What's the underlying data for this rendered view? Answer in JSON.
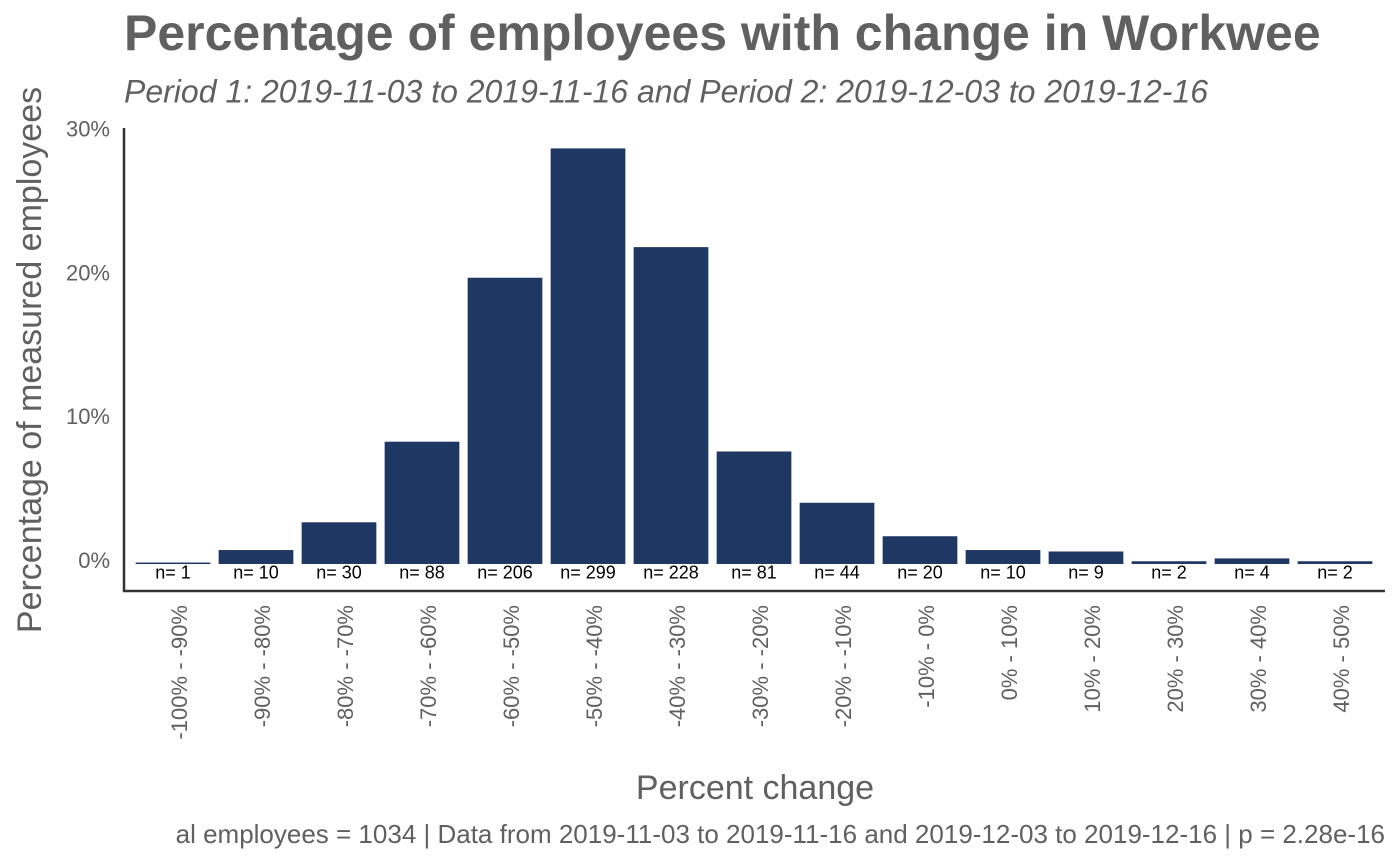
{
  "chart_data": {
    "type": "bar",
    "title": "Percentage of employees with change in Workwee",
    "subtitle": "Period 1: 2019-11-03 to 2019-11-16 and Period 2: 2019-12-03 to 2019-12-16",
    "x_label": "Percent change",
    "y_label": "Percentage of measured employees",
    "caption": "al employees = 1034 | Data from 2019-11-03 to 2019-11-16 and 2019-12-03 to 2019-12-16 | p = 2.28e-16",
    "categories": [
      "-100% - -90%",
      "-90% - -80%",
      "-80% - -70%",
      "-70% - -60%",
      "-60% - -50%",
      "-50% - -40%",
      "-40% - -30%",
      "-30% - -20%",
      "-20% - -10%",
      "-10% - 0%",
      "0% - 10%",
      "10% - 20%",
      "20% - 30%",
      "30% - 40%",
      "40% - 50%"
    ],
    "values": [
      0.1,
      0.97,
      2.9,
      8.51,
      19.92,
      28.92,
      22.05,
      7.83,
      4.26,
      1.93,
      0.97,
      0.87,
      0.19,
      0.39,
      0.19
    ],
    "count_labels": [
      "n= 1",
      "n= 10",
      "n= 30",
      "n= 88",
      "n= 206",
      "n= 299",
      "n= 228",
      "n= 81",
      "n= 44",
      "n= 20",
      "n= 10",
      "n= 9",
      "n= 2",
      "n= 4",
      "n= 2"
    ],
    "color": "#1f3763",
    "ylim": [
      -1.88,
      30.34
    ],
    "yticks": [
      {
        "value": 0,
        "label": "0%"
      },
      {
        "value": 10,
        "label": "10%"
      },
      {
        "value": 20,
        "label": "20%"
      },
      {
        "value": 30,
        "label": "30%"
      }
    ],
    "grid": false
  }
}
